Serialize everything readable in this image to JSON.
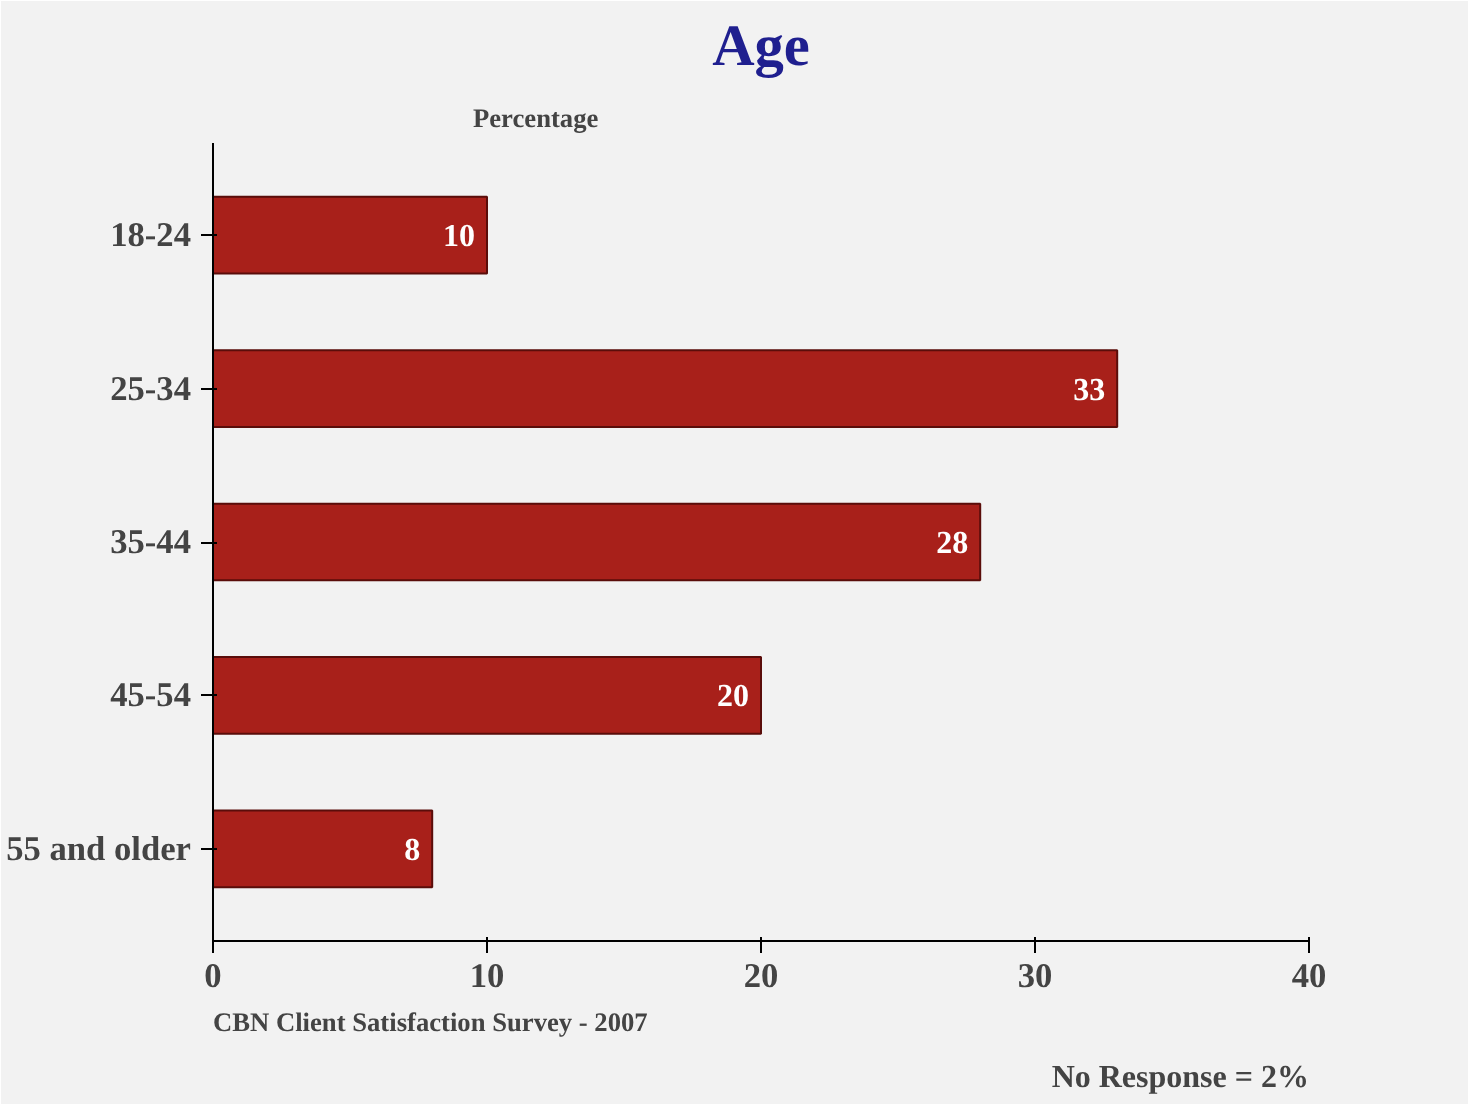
{
  "chart_data": {
    "type": "bar",
    "orientation": "horizontal",
    "title": "Age",
    "xlabel": "Percentage",
    "categories": [
      "18-24",
      "25-34",
      "35-44",
      "45-54",
      "55 and older"
    ],
    "values": [
      10,
      33,
      28,
      20,
      8
    ],
    "color": "#a8201a",
    "data_labels": true,
    "xlim": [
      0,
      40
    ],
    "xticks": [
      0,
      10,
      20,
      30,
      40
    ],
    "grid": false,
    "annotations": [
      "CBN Client Satisfaction Survey - 2007",
      "No Response = 2%"
    ]
  }
}
